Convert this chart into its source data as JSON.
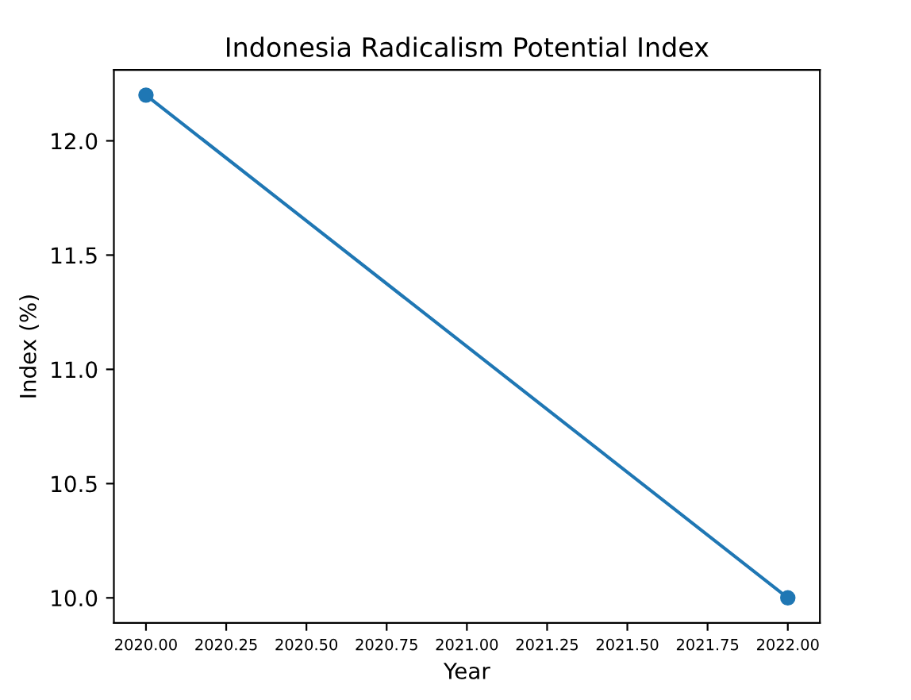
{
  "chart_data": {
    "type": "line",
    "title": "Indonesia Radicalism Potential Index",
    "xlabel": "Year",
    "ylabel": "Index (%)",
    "x": [
      2020,
      2022
    ],
    "series": [
      {
        "color": "#1f77b4",
        "values": [
          12.2,
          10.0
        ]
      }
    ],
    "marker": "circle",
    "line_style": "solid",
    "grid": false,
    "xlim": [
      2019.9,
      2022.1
    ],
    "ylim": [
      9.89,
      12.31
    ],
    "xticks": [
      {
        "value": 2020.0,
        "label": "2020.00"
      },
      {
        "value": 2020.25,
        "label": "2020.25"
      },
      {
        "value": 2020.5,
        "label": "2020.50"
      },
      {
        "value": 2020.75,
        "label": "2020.75"
      },
      {
        "value": 2021.0,
        "label": "2021.00"
      },
      {
        "value": 2021.25,
        "label": "2021.25"
      },
      {
        "value": 2021.5,
        "label": "2021.50"
      },
      {
        "value": 2021.75,
        "label": "2021.75"
      },
      {
        "value": 2022.0,
        "label": "2022.00"
      }
    ],
    "yticks": [
      {
        "value": 10.0,
        "label": "10.0"
      },
      {
        "value": 10.5,
        "label": "10.5"
      },
      {
        "value": 11.0,
        "label": "11.0"
      },
      {
        "value": 11.5,
        "label": "11.5"
      },
      {
        "value": 12.0,
        "label": "12.0"
      }
    ]
  }
}
